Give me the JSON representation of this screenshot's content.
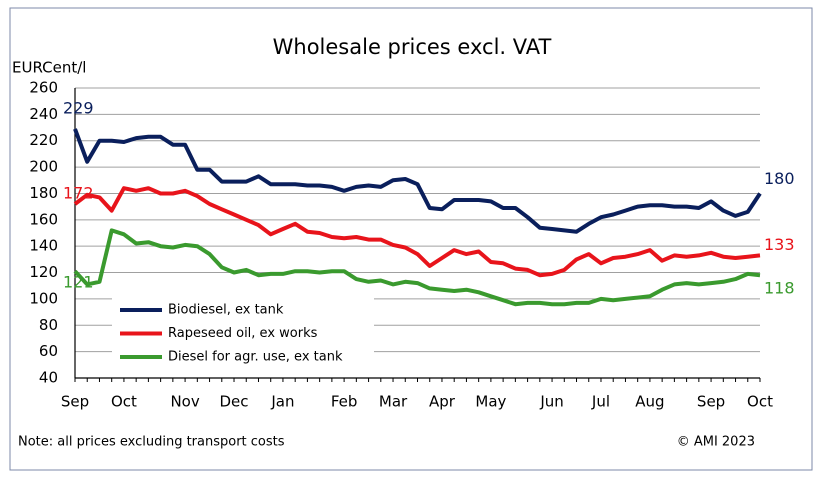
{
  "chart_data": {
    "type": "line",
    "title": "Wholesale prices excl. VAT",
    "y_label": "EURCent/l",
    "note": "Note: all prices excluding transport costs",
    "source": "© AMI 2023",
    "categories": [
      "Sep",
      null,
      null,
      null,
      "Oct",
      null,
      null,
      null,
      null,
      "Nov",
      null,
      null,
      null,
      "Dec",
      null,
      null,
      null,
      "Jan",
      null,
      null,
      null,
      null,
      "Feb",
      null,
      null,
      null,
      "Mar",
      null,
      null,
      null,
      "Apr",
      null,
      null,
      null,
      "May",
      null,
      null,
      null,
      null,
      "Jun",
      null,
      null,
      null,
      "Jul",
      null,
      null,
      null,
      "Aug",
      null,
      null,
      null,
      null,
      "Sep",
      null,
      null,
      null,
      "Oct"
    ],
    "series": [
      {
        "name": "Biodiesel, ex tank",
        "color": "#0a1f5c",
        "values": [
          229,
          204,
          220,
          220,
          219,
          222,
          223,
          223,
          217,
          217,
          198,
          198,
          189,
          189,
          189,
          193,
          187,
          187,
          187,
          186,
          186,
          185,
          182,
          185,
          186,
          185,
          190,
          191,
          187,
          169,
          168,
          175,
          175,
          175,
          174,
          169,
          169,
          162,
          154,
          153,
          152,
          151,
          157,
          162,
          164,
          167,
          170,
          171,
          171,
          170,
          170,
          169,
          174,
          167,
          163,
          166,
          180
        ]
      },
      {
        "name": "Rapeseed oil, ex works",
        "color": "#e8141b",
        "values": [
          172,
          179,
          177,
          167,
          184,
          182,
          184,
          180,
          180,
          182,
          178,
          172,
          168,
          164,
          160,
          156,
          149,
          153,
          157,
          151,
          150,
          147,
          146,
          147,
          145,
          145,
          141,
          139,
          134,
          125,
          131,
          137,
          134,
          136,
          128,
          127,
          123,
          122,
          118,
          119,
          122,
          130,
          134,
          127,
          131,
          132,
          134,
          137,
          129,
          133,
          132,
          133,
          135,
          132,
          131,
          132,
          133
        ]
      },
      {
        "name": "Diesel for agr. use, ex tank",
        "color": "#3a9a2e",
        "values": [
          121,
          111,
          113,
          152,
          149,
          142,
          143,
          140,
          139,
          141,
          140,
          134,
          124,
          120,
          122,
          118,
          119,
          119,
          121,
          121,
          120,
          121,
          121,
          115,
          113,
          114,
          111,
          113,
          112,
          108,
          107,
          106,
          107,
          105,
          102,
          99,
          96,
          97,
          97,
          96,
          96,
          97,
          97,
          100,
          99,
          100,
          101,
          102,
          107,
          111,
          112,
          111,
          112,
          113,
          115,
          119,
          118
        ]
      }
    ],
    "ylim": [
      40,
      260
    ],
    "yticks": [
      40,
      60,
      80,
      100,
      120,
      140,
      160,
      180,
      200,
      220,
      240,
      260
    ],
    "grid": true,
    "legend": "lower-left"
  }
}
